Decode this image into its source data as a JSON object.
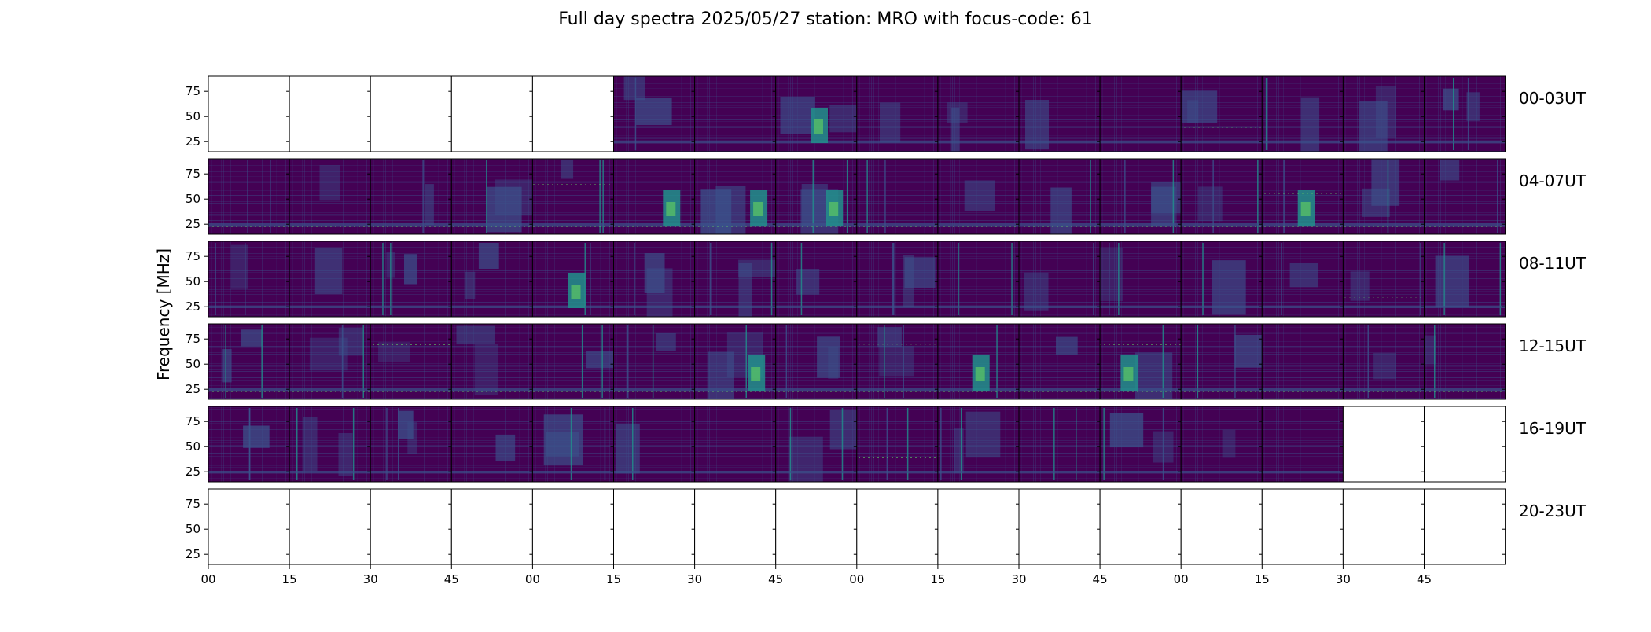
{
  "chart_data": {
    "type": "heatmap",
    "title": "Full day spectra 2025/05/27 station: MRO with focus-code: 61",
    "ylabel": "Frequency [MHz]",
    "xlabel": "",
    "y_ticks": [
      25,
      50,
      75
    ],
    "ylim": [
      15,
      90
    ],
    "x_tick_labels": [
      "00",
      "15",
      "30",
      "45",
      "00",
      "15",
      "30",
      "45",
      "00",
      "15",
      "30",
      "45",
      "00",
      "15",
      "30",
      "45"
    ],
    "rows": [
      {
        "label": "00-03UT",
        "panels_with_data": [
          0,
          0,
          0,
          0,
          0,
          1,
          1,
          1,
          1,
          1,
          1,
          1,
          1,
          1,
          1,
          1
        ]
      },
      {
        "label": "04-07UT",
        "panels_with_data": [
          1,
          1,
          1,
          1,
          1,
          1,
          1,
          1,
          1,
          1,
          1,
          1,
          1,
          1,
          1,
          1
        ]
      },
      {
        "label": "08-11UT",
        "panels_with_data": [
          1,
          1,
          1,
          1,
          1,
          1,
          1,
          1,
          1,
          1,
          1,
          1,
          1,
          1,
          1,
          1
        ]
      },
      {
        "label": "12-15UT",
        "panels_with_data": [
          1,
          1,
          1,
          1,
          1,
          1,
          1,
          1,
          1,
          1,
          1,
          1,
          1,
          1,
          1,
          1
        ]
      },
      {
        "label": "16-19UT",
        "panels_with_data": [
          1,
          1,
          1,
          1,
          1,
          1,
          1,
          1,
          1,
          1,
          1,
          1,
          1,
          1,
          0,
          0
        ]
      },
      {
        "label": "20-23UT",
        "panels_with_data": [
          0,
          0,
          0,
          0,
          0,
          0,
          0,
          0,
          0,
          0,
          0,
          0,
          0,
          0,
          0,
          0
        ]
      }
    ],
    "colormap": [
      "#440154",
      "#3b528b",
      "#21918c",
      "#5ec962",
      "#fde725"
    ],
    "grid": false,
    "legend": "none"
  }
}
